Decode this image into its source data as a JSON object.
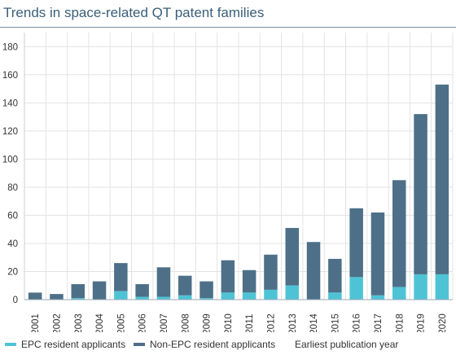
{
  "page": {
    "title": "Trends in space-related QT patent families"
  },
  "legend": {
    "epc_label": "EPC resident applicants",
    "non_epc_label": "Non-EPC resident applicants",
    "xlabel": "Earliest publication year"
  },
  "colors": {
    "epc": "#4fc3d6",
    "non_epc": "#4d7088",
    "grid": "#e3e3e3",
    "title": "#3a5f78"
  },
  "chart_data": {
    "type": "bar",
    "stacked": true,
    "title": "Trends in space-related QT patent families",
    "xlabel": "Earliest publication year",
    "ylabel": "",
    "ylim": [
      0,
      190
    ],
    "yticks": [
      0,
      20,
      40,
      60,
      80,
      100,
      120,
      140,
      160,
      180
    ],
    "grid": true,
    "legend_position": "bottom",
    "categories": [
      "2001",
      "2002",
      "2003",
      "2004",
      "2005",
      "2006",
      "2007",
      "2008",
      "2009",
      "2010",
      "2011",
      "2012",
      "2013",
      "2014",
      "2015",
      "2016",
      "2017",
      "2018",
      "2019",
      "2020"
    ],
    "series": [
      {
        "name": "EPC resident applicants",
        "values": [
          0,
          0,
          1,
          0,
          6,
          2,
          2,
          3,
          1,
          5,
          5,
          7,
          10,
          0,
          5,
          16,
          3,
          9,
          18,
          18
        ]
      },
      {
        "name": "Non-EPC resident applicants",
        "values": [
          5,
          4,
          10,
          13,
          20,
          9,
          21,
          14,
          12,
          23,
          16,
          25,
          41,
          41,
          24,
          49,
          59,
          76,
          114,
          135
        ]
      }
    ]
  }
}
